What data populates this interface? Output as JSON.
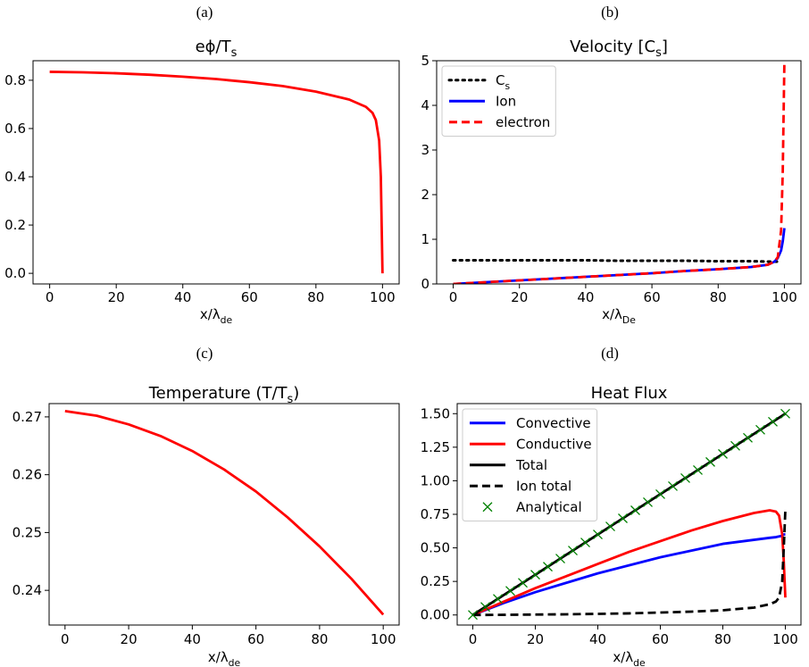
{
  "chart_data": [
    {
      "type": "line",
      "panel_label": "(a)",
      "title": "eϕ/T_{s}",
      "xlabel": "x/λ_{de}",
      "x": [
        0,
        10,
        20,
        30,
        40,
        50,
        60,
        70,
        80,
        90,
        95,
        97,
        98,
        99,
        99.5,
        100
      ],
      "series": [
        {
          "color": "#ff0000",
          "style": "solid",
          "values": [
            0.835,
            0.833,
            0.829,
            0.823,
            0.815,
            0.805,
            0.792,
            0.776,
            0.753,
            0.72,
            0.69,
            0.665,
            0.635,
            0.55,
            0.4,
            0
          ]
        }
      ],
      "xlim": [
        -5,
        105
      ],
      "xticks": [
        0,
        20,
        40,
        60,
        80,
        100
      ],
      "ylim": [
        -0.044,
        0.881
      ],
      "yticks": [
        {
          "value": 0,
          "label": "0.0"
        },
        0.2,
        0.4,
        0.6,
        0.8
      ]
    },
    {
      "type": "line",
      "panel_label": "(b)",
      "title": "Velocity [C_{s}]",
      "xlabel": "x/λ_{De}",
      "x": [
        0,
        10,
        20,
        30,
        40,
        50,
        60,
        70,
        80,
        90,
        95,
        97,
        98,
        99,
        99.5,
        100
      ],
      "series": [
        {
          "name": "C_{s}",
          "color": "#000000",
          "style": "dotted",
          "values": [
            0.53,
            0.53,
            0.53,
            0.53,
            0.53,
            0.52,
            0.52,
            0.52,
            0.51,
            0.51,
            0.5,
            0.5,
            0.5,
            0.5,
            null,
            null
          ]
        },
        {
          "name": "Ion",
          "color": "#0000ff",
          "style": "solid",
          "values": [
            0,
            0.04,
            0.08,
            0.12,
            0.16,
            0.2,
            0.24,
            0.29,
            0.33,
            0.38,
            0.43,
            0.5,
            0.58,
            0.75,
            0.95,
            1.25
          ]
        },
        {
          "name": "electron",
          "color": "#ff0000",
          "style": "dashed",
          "values": [
            0,
            0.04,
            0.08,
            0.12,
            0.16,
            0.2,
            0.24,
            0.29,
            0.33,
            0.38,
            0.43,
            0.5,
            0.6,
            1.2,
            2.5,
            5
          ]
        }
      ],
      "legend": "upper left",
      "xlim": [
        -5,
        105
      ],
      "xticks": [
        0,
        20,
        40,
        60,
        80,
        100
      ],
      "ylim": [
        0,
        5
      ],
      "yticks": [
        0,
        1,
        2,
        3,
        4,
        5
      ]
    },
    {
      "type": "line",
      "panel_label": "(c)",
      "title": "Temperature (T/T_{s})",
      "xlabel": "x/λ_{de}",
      "x": [
        0,
        10,
        20,
        30,
        40,
        50,
        60,
        70,
        80,
        90,
        100
      ],
      "series": [
        {
          "color": "#ff0000",
          "style": "solid",
          "values": [
            0.271,
            0.2702,
            0.2687,
            0.2667,
            0.2641,
            0.2609,
            0.2571,
            0.2526,
            0.2476,
            0.242,
            0.2358
          ]
        }
      ],
      "xlim": [
        -5,
        105
      ],
      "xticks": [
        0,
        20,
        40,
        60,
        80,
        100
      ],
      "ylim": [
        0.234,
        0.2723
      ],
      "yticks": [
        0.24,
        0.25,
        0.26,
        0.27
      ]
    },
    {
      "type": "line",
      "panel_label": "(d)",
      "title": "Heat Flux",
      "xlabel": "x/λ_{de}",
      "x": [
        0,
        10,
        20,
        30,
        40,
        50,
        60,
        70,
        80,
        90,
        95,
        97,
        98,
        99,
        99.5,
        100
      ],
      "series": [
        {
          "name": "Convective",
          "color": "#0000ff",
          "style": "solid",
          "values": [
            0,
            0.09,
            0.17,
            0.24,
            0.31,
            0.37,
            0.43,
            0.48,
            0.53,
            0.56,
            0.575,
            0.58,
            0.585,
            0.59,
            0.6,
            0.6
          ]
        },
        {
          "name": "Conductive",
          "color": "#ff0000",
          "style": "solid",
          "values": [
            0,
            0.1,
            0.2,
            0.29,
            0.38,
            0.47,
            0.55,
            0.63,
            0.7,
            0.76,
            0.78,
            0.77,
            0.74,
            0.6,
            0.4,
            0.13
          ]
        },
        {
          "name": "Total",
          "color": "#000000",
          "style": "solid",
          "values": [
            0,
            0.15,
            0.3,
            0.45,
            0.6,
            0.75,
            0.9,
            1.05,
            1.2,
            1.35,
            1.425,
            1.455,
            1.47,
            1.485,
            1.4925,
            1.5
          ]
        },
        {
          "name": "Ion total",
          "color": "#000000",
          "style": "dashed",
          "values": [
            0,
            0.001,
            0.003,
            0.005,
            0.008,
            0.012,
            0.018,
            0.025,
            0.035,
            0.055,
            0.08,
            0.1,
            0.13,
            0.25,
            0.5,
            0.78
          ]
        },
        {
          "name": "Analytical",
          "color": "#008000",
          "style": "marker-x",
          "x": [
            0,
            4,
            8,
            12,
            16,
            20,
            24,
            28,
            32,
            36,
            40,
            44,
            48,
            52,
            56,
            60,
            64,
            68,
            72,
            76,
            80,
            84,
            88,
            92,
            96,
            100
          ],
          "values": [
            0,
            0.06,
            0.12,
            0.18,
            0.24,
            0.3,
            0.36,
            0.42,
            0.48,
            0.54,
            0.6,
            0.66,
            0.72,
            0.78,
            0.84,
            0.9,
            0.96,
            1.02,
            1.08,
            1.14,
            1.2,
            1.26,
            1.32,
            1.38,
            1.44,
            1.5
          ]
        }
      ],
      "legend": "upper left",
      "xlim": [
        -5,
        105
      ],
      "xticks": [
        0,
        20,
        40,
        60,
        80,
        100
      ],
      "ylim": [
        -0.075,
        1.575
      ],
      "yticks": [
        {
          "value": 0,
          "label": "0.00"
        },
        0.25,
        {
          "value": 0.5,
          "label": "0.50"
        },
        0.75,
        {
          "value": 1,
          "label": "1.00"
        },
        1.25,
        {
          "value": 1.5,
          "label": "1.50"
        }
      ]
    }
  ]
}
